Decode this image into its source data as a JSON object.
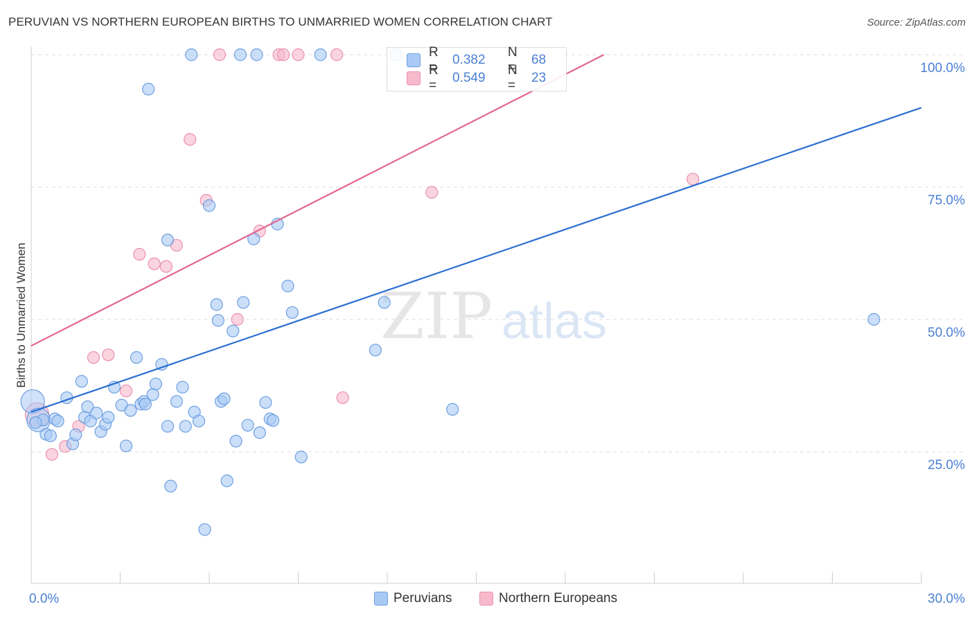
{
  "title": "PERUVIAN VS NORTHERN EUROPEAN BIRTHS TO UNMARRIED WOMEN CORRELATION CHART",
  "source": "Source: ZipAtlas.com",
  "watermark": {
    "zip": "ZIP",
    "atlas": "atlas"
  },
  "colors": {
    "blue_fill": "#a9c9f5",
    "blue_stroke": "#6d9fe0",
    "blue_line": "#2b6fd1",
    "pink_fill": "#f7b9cc",
    "pink_stroke": "#ea8fae",
    "pink_line": "#e2668f",
    "axis_text": "#4a7fd4",
    "grid": "#dddddd"
  },
  "legend": {
    "series": [
      {
        "name": "Peruvians",
        "r_label": "R =",
        "r_value": "0.382",
        "n_label": "N =",
        "n_value": "68"
      },
      {
        "name": "Northern Europeans",
        "r_label": "R =",
        "r_value": "0.549",
        "n_label": "N =",
        "n_value": "23"
      }
    ]
  },
  "chart_data": {
    "type": "scatter",
    "title": "PERUVIAN VS NORTHERN EUROPEAN BIRTHS TO UNMARRIED WOMEN CORRELATION CHART",
    "xlabel": "",
    "ylabel": "Births to Unmarried Women",
    "xlim": [
      0,
      30
    ],
    "ylim": [
      0,
      102
    ],
    "x_tick_labels": [
      "0.0%",
      "30.0%"
    ],
    "x_ticks": [
      0,
      30
    ],
    "y_tick_labels": [
      "100.0%",
      "75.0%",
      "50.0%",
      "25.0%"
    ],
    "y_ticks": [
      100,
      75,
      50,
      25
    ],
    "grid": true,
    "legend_position": "top-center",
    "series": [
      {
        "name": "Peruvians",
        "trend": {
          "x": [
            0,
            30
          ],
          "y": [
            32.5,
            90
          ]
        },
        "points": [
          {
            "x": 0.05,
            "y": 34.5,
            "big": true
          },
          {
            "x": 0.25,
            "y": 31.0,
            "big": true
          },
          {
            "x": 0.4,
            "y": 31.0
          },
          {
            "x": 0.5,
            "y": 28.3
          },
          {
            "x": 0.65,
            "y": 28.0
          },
          {
            "x": 0.8,
            "y": 31.2
          },
          {
            "x": 0.9,
            "y": 30.8
          },
          {
            "x": 1.2,
            "y": 35.2
          },
          {
            "x": 1.4,
            "y": 26.5
          },
          {
            "x": 1.5,
            "y": 28.2
          },
          {
            "x": 1.7,
            "y": 38.3
          },
          {
            "x": 1.8,
            "y": 31.5
          },
          {
            "x": 1.9,
            "y": 33.5
          },
          {
            "x": 2.0,
            "y": 30.8
          },
          {
            "x": 2.2,
            "y": 32.3
          },
          {
            "x": 2.35,
            "y": 28.8
          },
          {
            "x": 2.5,
            "y": 30.2
          },
          {
            "x": 2.6,
            "y": 31.5
          },
          {
            "x": 2.8,
            "y": 37.2
          },
          {
            "x": 3.05,
            "y": 33.8
          },
          {
            "x": 3.2,
            "y": 26.1
          },
          {
            "x": 3.35,
            "y": 32.8
          },
          {
            "x": 3.55,
            "y": 42.8
          },
          {
            "x": 3.7,
            "y": 34.0
          },
          {
            "x": 3.8,
            "y": 34.5
          },
          {
            "x": 4.1,
            "y": 35.8
          },
          {
            "x": 4.2,
            "y": 37.8
          },
          {
            "x": 4.4,
            "y": 41.5
          },
          {
            "x": 4.6,
            "y": 65.0
          },
          {
            "x": 4.6,
            "y": 29.8
          },
          {
            "x": 4.7,
            "y": 18.5
          },
          {
            "x": 4.9,
            "y": 34.5
          },
          {
            "x": 5.1,
            "y": 37.2
          },
          {
            "x": 5.2,
            "y": 29.8
          },
          {
            "x": 5.5,
            "y": 32.5
          },
          {
            "x": 5.65,
            "y": 30.8
          },
          {
            "x": 5.85,
            "y": 10.3
          },
          {
            "x": 6.0,
            "y": 71.5
          },
          {
            "x": 6.25,
            "y": 52.8
          },
          {
            "x": 6.3,
            "y": 49.8
          },
          {
            "x": 6.4,
            "y": 34.5
          },
          {
            "x": 6.6,
            "y": 19.5
          },
          {
            "x": 6.8,
            "y": 47.8
          },
          {
            "x": 6.9,
            "y": 27.0
          },
          {
            "x": 7.15,
            "y": 53.2
          },
          {
            "x": 7.3,
            "y": 30.0
          },
          {
            "x": 7.5,
            "y": 65.2
          },
          {
            "x": 7.7,
            "y": 28.6
          },
          {
            "x": 7.9,
            "y": 34.3
          },
          {
            "x": 8.05,
            "y": 31.2
          },
          {
            "x": 8.15,
            "y": 30.9
          },
          {
            "x": 8.3,
            "y": 68.0
          },
          {
            "x": 8.65,
            "y": 56.3
          },
          {
            "x": 8.8,
            "y": 51.3
          },
          {
            "x": 9.1,
            "y": 24.0
          },
          {
            "x": 11.6,
            "y": 44.2
          },
          {
            "x": 11.9,
            "y": 53.2
          },
          {
            "x": 14.2,
            "y": 33.0
          },
          {
            "x": 28.4,
            "y": 50.0
          },
          {
            "x": 3.95,
            "y": 93.5
          },
          {
            "x": 5.4,
            "y": 100.0
          },
          {
            "x": 7.05,
            "y": 100.0
          },
          {
            "x": 7.6,
            "y": 100.0
          },
          {
            "x": 9.75,
            "y": 100.0
          },
          {
            "x": 12.3,
            "y": 100.0
          },
          {
            "x": 0.15,
            "y": 30.5
          },
          {
            "x": 3.85,
            "y": 34.0
          },
          {
            "x": 6.5,
            "y": 35.0
          }
        ]
      },
      {
        "name": "Northern Europeans",
        "trend": {
          "x": [
            0,
            19.3
          ],
          "y": [
            45,
            100
          ]
        },
        "points": [
          {
            "x": 0.2,
            "y": 32.0,
            "big": true
          },
          {
            "x": 0.7,
            "y": 24.5
          },
          {
            "x": 1.15,
            "y": 26.0
          },
          {
            "x": 1.6,
            "y": 29.8
          },
          {
            "x": 2.1,
            "y": 42.8
          },
          {
            "x": 2.6,
            "y": 43.3
          },
          {
            "x": 3.2,
            "y": 36.5
          },
          {
            "x": 3.65,
            "y": 62.3
          },
          {
            "x": 4.15,
            "y": 60.5
          },
          {
            "x": 4.55,
            "y": 60.0
          },
          {
            "x": 4.9,
            "y": 64.0
          },
          {
            "x": 5.35,
            "y": 84.0
          },
          {
            "x": 5.9,
            "y": 72.5
          },
          {
            "x": 6.95,
            "y": 50.0
          },
          {
            "x": 7.7,
            "y": 66.7
          },
          {
            "x": 10.5,
            "y": 35.2
          },
          {
            "x": 6.35,
            "y": 100.0
          },
          {
            "x": 8.35,
            "y": 100.0
          },
          {
            "x": 8.5,
            "y": 100.0
          },
          {
            "x": 9.0,
            "y": 100.0
          },
          {
            "x": 10.3,
            "y": 100.0
          },
          {
            "x": 13.5,
            "y": 74.0
          },
          {
            "x": 22.3,
            "y": 76.5
          }
        ]
      }
    ]
  }
}
